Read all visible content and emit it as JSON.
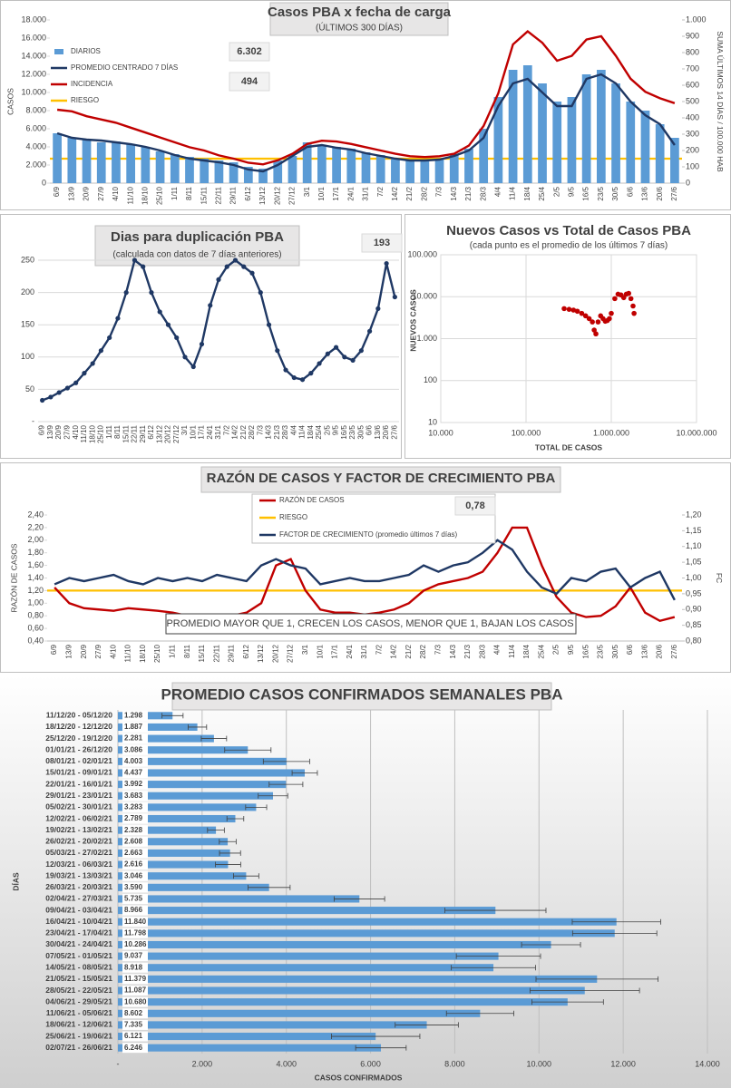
{
  "chart_data": [
    {
      "type": "combo",
      "title": "Casos PBA x fecha de carga",
      "subtitle": "(ÚLTIMOS 300 DÍAS)",
      "ylabel": "CASOS",
      "y2label": "SUMA ÚLTIMOS 14 DÍAS / 100.000 HAB",
      "categories": [
        "6/9",
        "13/9",
        "20/9",
        "27/9",
        "4/10",
        "11/10",
        "18/10",
        "25/10",
        "1/11",
        "8/11",
        "15/11",
        "22/11",
        "29/11",
        "6/12",
        "13/12",
        "20/12",
        "27/12",
        "3/1",
        "10/1",
        "17/1",
        "24/1",
        "31/1",
        "7/2",
        "14/2",
        "21/2",
        "28/2",
        "7/3",
        "14/3",
        "21/3",
        "28/3",
        "4/4",
        "11/4",
        "18/4",
        "25/4",
        "2/5",
        "9/5",
        "16/5",
        "23/5",
        "30/5",
        "6/6",
        "13/6",
        "20/6",
        "27/6"
      ],
      "series": [
        {
          "name": "DIARIOS",
          "kind": "bar",
          "color": "#5b9bd5",
          "values": [
            5500,
            5000,
            4800,
            4500,
            4600,
            4300,
            4000,
            3500,
            3200,
            2900,
            2700,
            2500,
            2300,
            1800,
            1600,
            2500,
            3000,
            4500,
            4200,
            4000,
            3800,
            3400,
            3100,
            2700,
            2500,
            2600,
            2700,
            3200,
            3800,
            6000,
            9500,
            12500,
            13000,
            11000,
            9000,
            9500,
            12000,
            12500,
            11000,
            9000,
            8000,
            6500,
            5000
          ]
        },
        {
          "name": "PROMEDIO CENTRADO 7 DÍAS",
          "kind": "line",
          "color": "#1f3864",
          "values": [
            5500,
            5000,
            4800,
            4700,
            4500,
            4300,
            4000,
            3600,
            3100,
            2700,
            2500,
            2300,
            2000,
            1500,
            1300,
            2000,
            3000,
            4000,
            4200,
            3900,
            3700,
            3300,
            3000,
            2700,
            2500,
            2500,
            2600,
            3000,
            3600,
            5000,
            8500,
            11000,
            11500,
            10000,
            8500,
            8500,
            11500,
            12000,
            11000,
            9000,
            7500,
            6500,
            4200
          ]
        },
        {
          "name": "INCIDENCIA",
          "kind": "line",
          "axis": "y2",
          "color": "#c00000",
          "values": [
            450,
            440,
            410,
            390,
            370,
            340,
            310,
            280,
            250,
            220,
            200,
            170,
            150,
            125,
            115,
            140,
            180,
            240,
            260,
            255,
            240,
            220,
            200,
            180,
            165,
            160,
            165,
            180,
            230,
            350,
            550,
            850,
            930,
            860,
            750,
            780,
            880,
            900,
            780,
            640,
            560,
            520,
            490
          ]
        }
      ],
      "reference_lines": [
        {
          "name": "RIESGO",
          "value": 150,
          "axis": "y2",
          "color": "#ffc000"
        }
      ],
      "annotations": [
        "6.302",
        "494"
      ],
      "ylim": [
        0,
        18000
      ],
      "yticks": [
        0,
        {
          "value": 2000,
          "label": "2.000"
        },
        {
          "value": 4000,
          "label": "4.000"
        },
        {
          "value": 6000,
          "label": "6.000"
        },
        {
          "value": 8000,
          "label": "8.000"
        },
        {
          "value": 10000,
          "label": "10.000"
        },
        {
          "value": 12000,
          "label": "12.000"
        },
        {
          "value": 14000,
          "label": "14.000"
        },
        {
          "value": 16000,
          "label": "16.000"
        },
        {
          "value": 18000,
          "label": "18.000"
        }
      ],
      "y2lim": [
        0,
        1000
      ],
      "y2ticks": [
        0,
        100,
        200,
        300,
        400,
        500,
        600,
        700,
        800,
        900,
        {
          "value": 1000,
          "label": "1.000"
        }
      ],
      "grid": false,
      "legend": "upper left"
    },
    {
      "type": "line",
      "title": "Dias para duplicación PBA",
      "subtitle": "(calculada con datos de 7 días anteriores)",
      "categories": [
        "6/9",
        "13/9",
        "20/9",
        "27/9",
        "4/10",
        "11/10",
        "18/10",
        "25/10",
        "1/11",
        "8/11",
        "15/11",
        "22/11",
        "29/11",
        "6/12",
        "13/12",
        "20/12",
        "27/12",
        "3/1",
        "10/1",
        "17/1",
        "24/1",
        "31/1",
        "7/2",
        "14/2",
        "21/2",
        "28/2",
        "7/3",
        "14/3",
        "21/3",
        "28/3",
        "4/4",
        "11/4",
        "18/4",
        "25/4",
        "2/5",
        "9/5",
        "16/5",
        "23/5",
        "30/5",
        "6/6",
        "13/6",
        "20/6",
        "27/6"
      ],
      "series": [
        {
          "kind": "line",
          "markers": true,
          "color": "#1f3864",
          "values": [
            33,
            38,
            45,
            52,
            60,
            75,
            90,
            110,
            130,
            160,
            200,
            250,
            240,
            200,
            170,
            150,
            130,
            100,
            85,
            120,
            180,
            220,
            240,
            250,
            240,
            230,
            200,
            150,
            110,
            80,
            68,
            65,
            75,
            90,
            105,
            115,
            100,
            95,
            110,
            140,
            175,
            245,
            193
          ]
        }
      ],
      "annotations": [
        "193"
      ],
      "ylim": [
        0,
        250
      ],
      "yticks": [
        {
          "value": 0,
          "label": "-"
        },
        50,
        100,
        150,
        200,
        250
      ],
      "grid": true
    },
    {
      "type": "scatter",
      "title": "Nuevos Casos vs Total de Casos PBA",
      "subtitle": "(cada punto es el promedio de los últimos 7 días)",
      "xlabel": "TOTAL DE CASOS",
      "ylabel": "NUEVOS CASOS",
      "color": "#c00000",
      "x": [
        280000,
        320000,
        360000,
        400000,
        450000,
        500000,
        550000,
        600000,
        630000,
        660000,
        700000,
        750000,
        800000,
        850000,
        900000,
        950000,
        1000000,
        1100000,
        1200000,
        1300000,
        1400000,
        1500000,
        1600000,
        1700000,
        1800000,
        1850000
      ],
      "y": [
        5200,
        5000,
        4800,
        4500,
        4000,
        3500,
        3000,
        2500,
        1600,
        1300,
        2500,
        3500,
        3000,
        2600,
        2700,
        3000,
        4000,
        9000,
        11500,
        11000,
        9500,
        11500,
        12000,
        9000,
        6000,
        4000
      ],
      "log_x": true,
      "log_y": true,
      "grid": true,
      "xlim": [
        10000,
        10000000
      ],
      "xticks": [
        {
          "value": 10000,
          "label": "10.000"
        },
        {
          "value": 100000,
          "label": "100.000"
        },
        {
          "value": 1000000,
          "label": "1.000.000"
        },
        {
          "value": 10000000,
          "label": "10.000.000"
        }
      ],
      "ylim": [
        10,
        100000
      ],
      "yticks": [
        10,
        100,
        {
          "value": 1000,
          "label": "1.000"
        },
        {
          "value": 10000,
          "label": "10.000"
        },
        {
          "value": 100000,
          "label": "100.000"
        }
      ]
    },
    {
      "type": "line",
      "title": "RAZÓN DE CASOS Y FACTOR DE CRECIMIENTO PBA",
      "ylabel": "RAZÓN DE CASOS",
      "y2label": "FC",
      "categories": [
        "6/9",
        "13/9",
        "20/9",
        "27/9",
        "4/10",
        "11/10",
        "18/10",
        "25/10",
        "1/11",
        "8/11",
        "15/11",
        "22/11",
        "29/11",
        "6/12",
        "13/12",
        "20/12",
        "27/12",
        "3/1",
        "10/1",
        "17/1",
        "24/1",
        "31/1",
        "7/2",
        "14/2",
        "21/2",
        "28/2",
        "7/3",
        "14/3",
        "21/3",
        "28/3",
        "4/4",
        "11/4",
        "18/4",
        "25/4",
        "2/5",
        "9/5",
        "16/5",
        "23/5",
        "30/5",
        "6/6",
        "13/6",
        "20/6",
        "27/6"
      ],
      "series": [
        {
          "name": "RAZÓN DE CASOS",
          "kind": "line",
          "color": "#c00000",
          "values": [
            1.25,
            1.0,
            0.92,
            0.9,
            0.88,
            0.92,
            0.9,
            0.88,
            0.85,
            0.8,
            0.78,
            0.78,
            0.8,
            0.85,
            1.0,
            1.6,
            1.7,
            1.2,
            0.9,
            0.85,
            0.85,
            0.82,
            0.85,
            0.9,
            1.0,
            1.2,
            1.3,
            1.35,
            1.4,
            1.5,
            1.8,
            2.2,
            2.2,
            1.6,
            1.1,
            0.85,
            0.78,
            0.8,
            0.95,
            1.25,
            0.85,
            0.72,
            0.78
          ]
        },
        {
          "name": "FACTOR DE CRECIMIENTO (promedio últimos 7 días)",
          "kind": "line",
          "axis": "y2",
          "color": "#1f3864",
          "values": [
            0.98,
            1.0,
            0.99,
            1.0,
            1.01,
            0.99,
            0.98,
            1.0,
            0.99,
            1.0,
            0.99,
            1.01,
            1.0,
            0.99,
            1.04,
            1.06,
            1.04,
            1.03,
            0.98,
            0.99,
            1.0,
            0.99,
            0.99,
            1.0,
            1.01,
            1.04,
            1.02,
            1.04,
            1.05,
            1.08,
            1.12,
            1.09,
            1.02,
            0.97,
            0.95,
            1.0,
            0.99,
            1.02,
            1.03,
            0.97,
            1.0,
            1.02,
            0.93
          ]
        }
      ],
      "reference_lines": [
        {
          "name": "RIESGO",
          "value": 1.2,
          "axis": "y",
          "color": "#ffc000"
        }
      ],
      "annotations": [
        "0,78",
        "PROMEDIO MAYOR QUE 1, CRECEN LOS CASOS, MENOR QUE 1, BAJAN LOS CASOS"
      ],
      "ylim": [
        0.4,
        2.4
      ],
      "yticks": [
        {
          "value": 0.4,
          "label": "0,40"
        },
        {
          "value": 0.6,
          "label": "0,60"
        },
        {
          "value": 0.8,
          "label": "0,80"
        },
        {
          "value": 1.0,
          "label": "1,00"
        },
        {
          "value": 1.2,
          "label": "1,20"
        },
        {
          "value": 1.4,
          "label": "1,40"
        },
        {
          "value": 1.6,
          "label": "1,60"
        },
        {
          "value": 1.8,
          "label": "1,80"
        },
        {
          "value": 2.0,
          "label": "2,00"
        },
        {
          "value": 2.2,
          "label": "2,20"
        },
        {
          "value": 2.4,
          "label": "2,40"
        }
      ],
      "y2lim": [
        0.8,
        1.2
      ],
      "y2ticks": [
        {
          "value": 0.8,
          "label": "0,80"
        },
        {
          "value": 0.85,
          "label": "0,85"
        },
        {
          "value": 0.9,
          "label": "0,90"
        },
        {
          "value": 0.95,
          "label": "0,95"
        },
        {
          "value": 1.0,
          "label": "1,00"
        },
        {
          "value": 1.05,
          "label": "1,05"
        },
        {
          "value": 1.1,
          "label": "1,10"
        },
        {
          "value": 1.15,
          "label": "1,15"
        },
        {
          "value": 1.2,
          "label": "1,20"
        }
      ],
      "grid": false,
      "legend": "upper center"
    },
    {
      "type": "bar",
      "orientation": "horizontal",
      "title": "PROMEDIO CASOS CONFIRMADOS SEMANALES PBA",
      "xlabel": "CASOS CONFIRMADOS",
      "ylabel": "DÍAS",
      "color": "#5b9bd5",
      "categories": [
        "11/12/20 - 05/12/20",
        "18/12/20 - 12/12/20",
        "25/12/20 - 19/12/20",
        "01/01/21 - 26/12/20",
        "08/01/21 - 02/01/21",
        "15/01/21 - 09/01/21",
        "22/01/21 - 16/01/21",
        "29/01/21 - 23/01/21",
        "05/02/21 - 30/01/21",
        "12/02/21 - 06/02/21",
        "19/02/21 - 13/02/21",
        "26/02/21 - 20/02/21",
        "05/03/21 - 27/02/21",
        "12/03/21 - 06/03/21",
        "19/03/21 - 13/03/21",
        "26/03/21 - 20/03/21",
        "02/04/21 - 27/03/21",
        "09/04/21 - 03/04/21",
        "16/04/21 - 10/04/21",
        "23/04/21 - 17/04/21",
        "30/04/21 - 24/04/21",
        "07/05/21 - 01/05/21",
        "14/05/21 - 08/05/21",
        "21/05/21 - 15/05/21",
        "28/05/21 - 22/05/21",
        "04/06/21 - 29/05/21",
        "11/06/21 - 05/06/21",
        "18/06/21 - 12/06/21",
        "25/06/21 - 19/06/21",
        "02/07/21 - 26/06/21"
      ],
      "values": [
        1298,
        1887,
        2281,
        3086,
        4003,
        4437,
        3992,
        3683,
        3283,
        2789,
        2328,
        2608,
        2663,
        2616,
        3046,
        3590,
        5735,
        8966,
        11840,
        11798,
        10286,
        9037,
        8918,
        11379,
        11087,
        10680,
        8602,
        7335,
        6121,
        6246
      ],
      "value_labels": [
        "1.298",
        "1.887",
        "2.281",
        "3.086",
        "4.003",
        "4.437",
        "3.992",
        "3.683",
        "3.283",
        "2.789",
        "2.328",
        "2.608",
        "2.663",
        "2.616",
        "3.046",
        "3.590",
        "5.735",
        "8.966",
        "11.840",
        "11.798",
        "10.286",
        "9.037",
        "8.918",
        "11.379",
        "11.087",
        "10.680",
        "8.602",
        "7.335",
        "6.121",
        "6.246"
      ],
      "errors": [
        250,
        220,
        300,
        550,
        550,
        300,
        400,
        350,
        250,
        200,
        200,
        200,
        250,
        300,
        300,
        500,
        600,
        1200,
        1050,
        1000,
        700,
        1000,
        1000,
        1450,
        1300,
        850,
        800,
        750,
        1050,
        600
      ],
      "xlim": [
        0,
        14000
      ],
      "xticks": [
        {
          "value": 0,
          "label": "-"
        },
        {
          "value": 2000,
          "label": "2.000"
        },
        {
          "value": 4000,
          "label": "4.000"
        },
        {
          "value": 6000,
          "label": "6.000"
        },
        {
          "value": 8000,
          "label": "8.000"
        },
        {
          "value": 10000,
          "label": "10.000"
        },
        {
          "value": 12000,
          "label": "12.000"
        },
        {
          "value": 14000,
          "label": "14.000"
        }
      ],
      "grid": true
    }
  ]
}
